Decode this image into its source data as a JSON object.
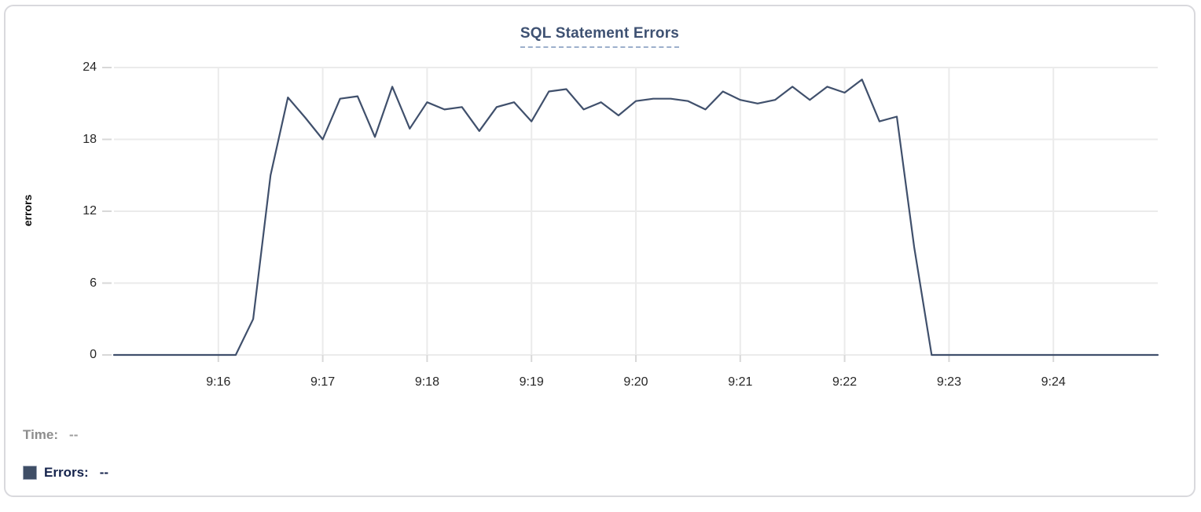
{
  "chart": {
    "title": "SQL Statement Errors",
    "y_axis_label": "errors"
  },
  "readout": {
    "time_label": "Time:",
    "time_value": "--",
    "errors_label": "Errors:",
    "errors_value": "--"
  },
  "colors": {
    "line": "#40506c",
    "swatch": "#3f4e66",
    "title": "#3e5172",
    "grid": "#ebebeb",
    "tick_mark": "#d8d8d8",
    "tick_text": "#262626"
  },
  "chart_data": {
    "type": "line",
    "title": "SQL Statement Errors",
    "xlabel": "",
    "ylabel": "errors",
    "series_name": "Errors",
    "grid": true,
    "legend_position": "none",
    "ylim": [
      0,
      24
    ],
    "xlim": [
      "9:15:00",
      "9:25:00"
    ],
    "y_ticks": [
      0,
      6,
      12,
      18,
      24
    ],
    "x_tick_labels": [
      "9:16",
      "9:17",
      "9:18",
      "9:19",
      "9:20",
      "9:21",
      "9:22",
      "9:23",
      "9:24"
    ],
    "x": [
      "9:15:00",
      "9:15:10",
      "9:15:20",
      "9:15:30",
      "9:15:40",
      "9:15:50",
      "9:16:00",
      "9:16:10",
      "9:16:20",
      "9:16:30",
      "9:16:40",
      "9:16:50",
      "9:17:00",
      "9:17:10",
      "9:17:20",
      "9:17:30",
      "9:17:40",
      "9:17:50",
      "9:18:00",
      "9:18:10",
      "9:18:20",
      "9:18:30",
      "9:18:40",
      "9:18:50",
      "9:19:00",
      "9:19:10",
      "9:19:20",
      "9:19:30",
      "9:19:40",
      "9:19:50",
      "9:20:00",
      "9:20:10",
      "9:20:20",
      "9:20:30",
      "9:20:40",
      "9:20:50",
      "9:21:00",
      "9:21:10",
      "9:21:20",
      "9:21:30",
      "9:21:40",
      "9:21:50",
      "9:22:00",
      "9:22:10",
      "9:22:20",
      "9:22:30",
      "9:22:40",
      "9:22:50",
      "9:23:00",
      "9:23:10",
      "9:23:20",
      "9:23:30",
      "9:23:40",
      "9:23:50",
      "9:24:00",
      "9:24:10",
      "9:24:20",
      "9:24:30",
      "9:24:40",
      "9:24:50",
      "9:25:00"
    ],
    "values": [
      0,
      0,
      0,
      0,
      0,
      0,
      0,
      0,
      3,
      15,
      21.5,
      19.8,
      18,
      21.4,
      21.6,
      18.2,
      22.4,
      18.9,
      21.1,
      20.5,
      20.7,
      18.7,
      20.7,
      21.1,
      19.5,
      22,
      22.2,
      20.5,
      21.1,
      20,
      21.2,
      21.4,
      21.4,
      21.2,
      20.5,
      22,
      21.3,
      21,
      21.3,
      22.4,
      21.3,
      22.4,
      21.9,
      23,
      19.5,
      19.9,
      9,
      0,
      0,
      0,
      0,
      0,
      0,
      0,
      0,
      0,
      0,
      0,
      0,
      0,
      0
    ]
  }
}
